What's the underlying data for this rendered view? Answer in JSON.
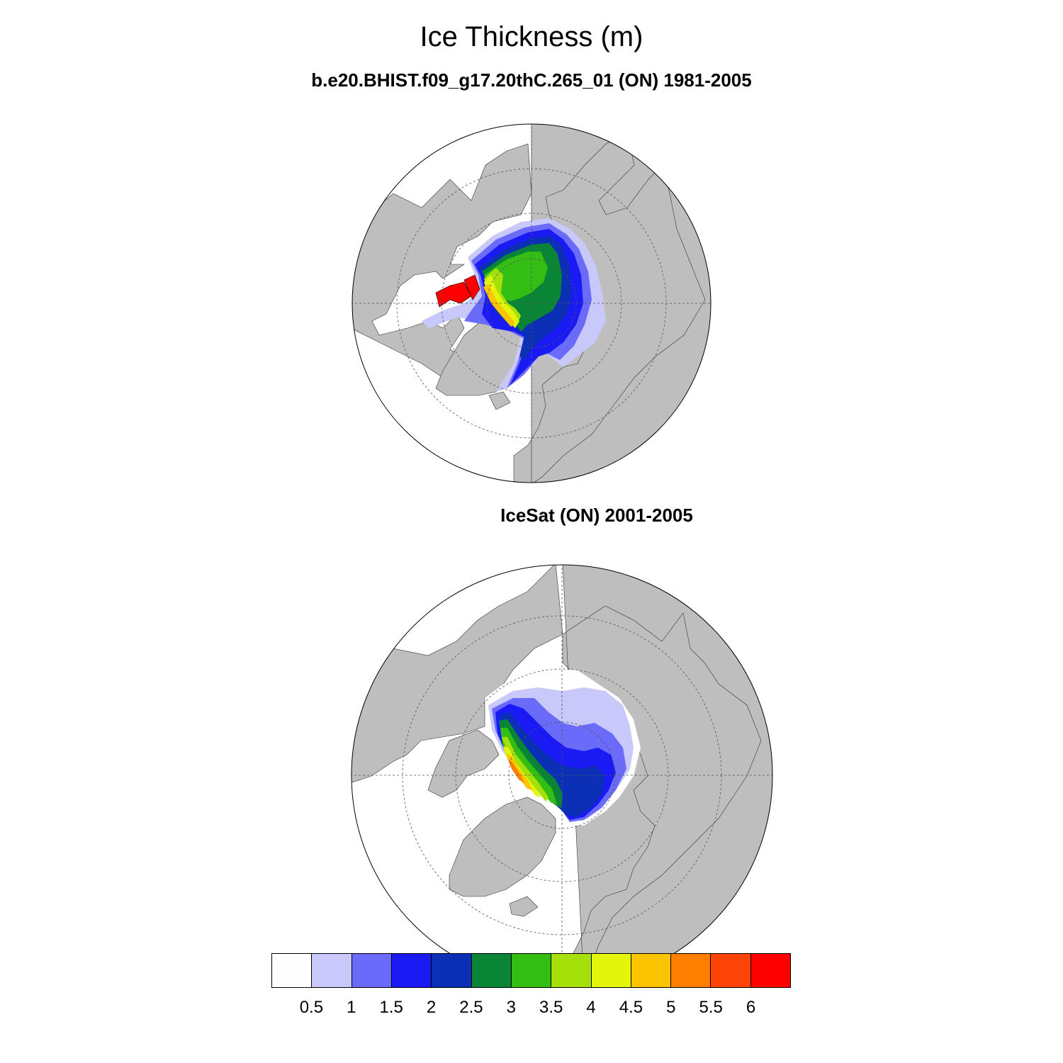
{
  "title": "Ice Thickness (m)",
  "panels": [
    {
      "subtitle": "b.e20.BHIST.f09_g17.20thC.265_01 (ON) 1981-2005"
    },
    {
      "subtitle": "IceSat (ON) 2001-2005"
    }
  ],
  "colorbar": {
    "labels": [
      "0.5",
      "1",
      "1.5",
      "2",
      "2.5",
      "3",
      "3.5",
      "4",
      "4.5",
      "5",
      "5.5",
      "6"
    ],
    "colors": [
      "#fefefe",
      "#c8c8fa",
      "#6b6bfa",
      "#1a1af5",
      "#0b2fb5",
      "#0a8536",
      "#34bd13",
      "#a6e00b",
      "#e3f50a",
      "#fbc400",
      "#fe7f00",
      "#fd4308",
      "#fe0000"
    ]
  },
  "colors": {
    "land": "#bebebe",
    "ocean": "#ffffff",
    "outline": "#000000",
    "grid": "#555555"
  }
}
